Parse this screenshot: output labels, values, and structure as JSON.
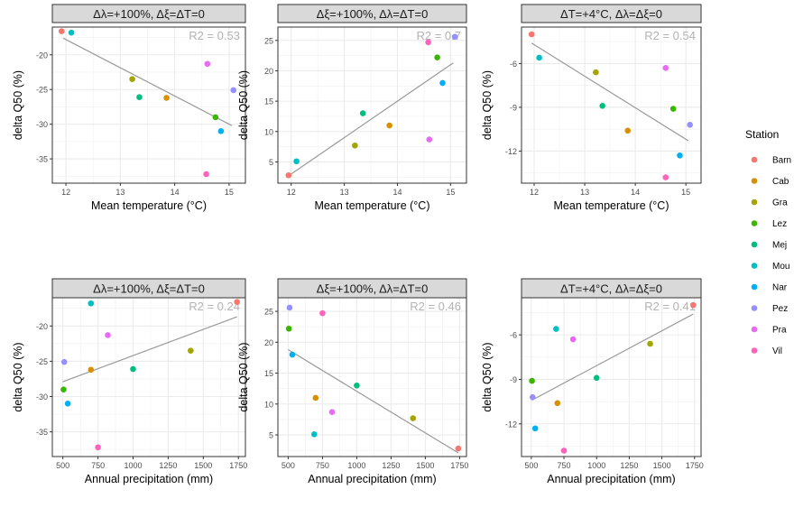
{
  "station_colors": {
    "Barn": "#F8766D",
    "Cab": "#D89000",
    "Gra": "#A3A500",
    "Lez": "#39B600",
    "Mej": "#00BF7D",
    "Mou": "#00BFC4",
    "Nar": "#00B0F6",
    "Pez": "#9590FF",
    "Pra": "#E76BF3",
    "Vil": "#FF62BC"
  },
  "legend": {
    "title": "Station",
    "items": [
      "Barn",
      "Cab",
      "Gra",
      "Lez",
      "Mej",
      "Mou",
      "Nar",
      "Pez",
      "Pra",
      "Vil"
    ]
  },
  "chart_data": [
    {
      "type": "scatter",
      "title": "Δλ=+100%, Δξ=ΔT=0",
      "xlabel": "Mean temperature (°C)",
      "ylabel": "delta Q50 (%)",
      "annotation": "R2 = 0.53",
      "xlim": [
        11.75,
        15.3
      ],
      "ylim": [
        -38.5,
        -16
      ],
      "xticks": [
        12,
        13,
        14,
        15
      ],
      "yticks": [
        -35,
        -30,
        -25,
        -20
      ],
      "trend": [
        [
          11.95,
          -17.6
        ],
        [
          15.05,
          -30.2
        ]
      ],
      "points": [
        {
          "station": "Barn",
          "x": 11.92,
          "y": -16.6
        },
        {
          "station": "Mou",
          "x": 12.1,
          "y": -16.8
        },
        {
          "station": "Gra",
          "x": 13.22,
          "y": -23.5
        },
        {
          "station": "Mej",
          "x": 13.35,
          "y": -26.1
        },
        {
          "station": "Cab",
          "x": 13.85,
          "y": -26.2
        },
        {
          "station": "Pra",
          "x": 14.6,
          "y": -21.3
        },
        {
          "station": "Vil",
          "x": 14.58,
          "y": -37.2
        },
        {
          "station": "Lez",
          "x": 14.75,
          "y": -29.0
        },
        {
          "station": "Nar",
          "x": 14.85,
          "y": -31.0
        },
        {
          "station": "Pez",
          "x": 15.08,
          "y": -25.1
        }
      ]
    },
    {
      "type": "scatter",
      "title": "Δξ=+100%, Δλ=ΔT=0",
      "xlabel": "Mean temperature (°C)",
      "ylabel": "delta Q50 (%)",
      "annotation": "R2 = 0.7",
      "xlim": [
        11.75,
        15.3
      ],
      "ylim": [
        1.5,
        27.2
      ],
      "xticks": [
        12,
        13,
        14,
        15
      ],
      "yticks": [
        5,
        10,
        15,
        20,
        25
      ],
      "trend": [
        [
          11.95,
          2.7
        ],
        [
          15.05,
          21.3
        ]
      ],
      "points": [
        {
          "station": "Barn",
          "x": 11.95,
          "y": 2.8
        },
        {
          "station": "Mou",
          "x": 12.1,
          "y": 5.1
        },
        {
          "station": "Gra",
          "x": 13.2,
          "y": 7.7
        },
        {
          "station": "Mej",
          "x": 13.35,
          "y": 13.0
        },
        {
          "station": "Cab",
          "x": 13.85,
          "y": 11.0
        },
        {
          "station": "Pra",
          "x": 14.6,
          "y": 8.7
        },
        {
          "station": "Vil",
          "x": 14.58,
          "y": 24.7
        },
        {
          "station": "Lez",
          "x": 14.75,
          "y": 22.2
        },
        {
          "station": "Nar",
          "x": 14.85,
          "y": 18.0
        },
        {
          "station": "Pez",
          "x": 15.08,
          "y": 25.6
        }
      ]
    },
    {
      "type": "scatter",
      "title": "ΔT=+4°C, Δλ=Δξ=0",
      "xlabel": "Mean temperature (°C)",
      "ylabel": "delta Q50 (%)",
      "annotation": "R2 = 0.54",
      "xlim": [
        11.75,
        15.3
      ],
      "ylim": [
        -14.2,
        -3.5
      ],
      "xticks": [
        12,
        13,
        14,
        15
      ],
      "yticks": [
        -12,
        -9,
        -6
      ],
      "trend": [
        [
          11.95,
          -4.6
        ],
        [
          15.05,
          -11.3
        ]
      ],
      "points": [
        {
          "station": "Barn",
          "x": 11.95,
          "y": -4.0
        },
        {
          "station": "Mou",
          "x": 12.1,
          "y": -5.6
        },
        {
          "station": "Gra",
          "x": 13.22,
          "y": -6.6
        },
        {
          "station": "Mej",
          "x": 13.35,
          "y": -8.9
        },
        {
          "station": "Cab",
          "x": 13.85,
          "y": -10.6
        },
        {
          "station": "Pra",
          "x": 14.6,
          "y": -6.3
        },
        {
          "station": "Vil",
          "x": 14.6,
          "y": -13.8
        },
        {
          "station": "Lez",
          "x": 14.75,
          "y": -9.1
        },
        {
          "station": "Nar",
          "x": 14.88,
          "y": -12.3
        },
        {
          "station": "Pez",
          "x": 15.08,
          "y": -10.2
        }
      ]
    },
    {
      "type": "scatter",
      "title": "Δλ=+100%, Δξ=ΔT=0",
      "xlabel": "Annual precipitation (mm)",
      "ylabel": "delta Q50 (%)",
      "annotation": "R2 = 0.24",
      "xlim": [
        425,
        1800
      ],
      "ylim": [
        -38.5,
        -16
      ],
      "xticks": [
        500,
        750,
        1000,
        1250,
        1500,
        1750
      ],
      "yticks": [
        -35,
        -30,
        -25,
        -20
      ],
      "trend": [
        [
          500,
          -27.9
        ],
        [
          1740,
          -18.7
        ]
      ],
      "points": [
        {
          "station": "Barn",
          "x": 1740,
          "y": -16.6
        },
        {
          "station": "Mou",
          "x": 700,
          "y": -16.8
        },
        {
          "station": "Gra",
          "x": 1410,
          "y": -23.5
        },
        {
          "station": "Mej",
          "x": 1000,
          "y": -26.1
        },
        {
          "station": "Cab",
          "x": 700,
          "y": -26.2
        },
        {
          "station": "Pra",
          "x": 820,
          "y": -21.3
        },
        {
          "station": "Vil",
          "x": 750,
          "y": -37.2
        },
        {
          "station": "Lez",
          "x": 505,
          "y": -29.0
        },
        {
          "station": "Nar",
          "x": 535,
          "y": -31.0
        },
        {
          "station": "Pez",
          "x": 510,
          "y": -25.1
        }
      ]
    },
    {
      "type": "scatter",
      "title": "Δξ=+100%, Δλ=ΔT=0",
      "xlabel": "Annual precipitation (mm)",
      "ylabel": "delta Q50 (%)",
      "annotation": "R2 = 0.46",
      "xlim": [
        425,
        1800
      ],
      "ylim": [
        1.5,
        27.2
      ],
      "xticks": [
        500,
        750,
        1000,
        1250,
        1500,
        1750
      ],
      "yticks": [
        5,
        10,
        15,
        20,
        25
      ],
      "trend": [
        [
          500,
          18.8
        ],
        [
          1740,
          2.1
        ]
      ],
      "points": [
        {
          "station": "Barn",
          "x": 1740,
          "y": 2.8
        },
        {
          "station": "Mou",
          "x": 690,
          "y": 5.1
        },
        {
          "station": "Gra",
          "x": 1410,
          "y": 7.7
        },
        {
          "station": "Mej",
          "x": 1000,
          "y": 13.0
        },
        {
          "station": "Cab",
          "x": 700,
          "y": 11.0
        },
        {
          "station": "Pra",
          "x": 820,
          "y": 8.7
        },
        {
          "station": "Vil",
          "x": 750,
          "y": 24.7
        },
        {
          "station": "Lez",
          "x": 505,
          "y": 22.2
        },
        {
          "station": "Nar",
          "x": 530,
          "y": 18.0
        },
        {
          "station": "Pez",
          "x": 510,
          "y": 25.6
        }
      ]
    },
    {
      "type": "scatter",
      "title": "ΔT=+4°C, Δλ=Δξ=0",
      "xlabel": "Annual precipitation (mm)",
      "ylabel": "delta Q50 (%)",
      "annotation": "R2 = 0.41",
      "xlim": [
        425,
        1800
      ],
      "ylim": [
        -14.2,
        -3.5
      ],
      "xticks": [
        500,
        750,
        1000,
        1250,
        1500,
        1750
      ],
      "yticks": [
        -12,
        -9,
        -6
      ],
      "trend": [
        [
          505,
          -10.4
        ],
        [
          1740,
          -4.6
        ]
      ],
      "points": [
        {
          "station": "Barn",
          "x": 1740,
          "y": -4.0
        },
        {
          "station": "Mou",
          "x": 690,
          "y": -5.6
        },
        {
          "station": "Gra",
          "x": 1410,
          "y": -6.6
        },
        {
          "station": "Mej",
          "x": 1000,
          "y": -8.9
        },
        {
          "station": "Cab",
          "x": 700,
          "y": -10.6
        },
        {
          "station": "Pra",
          "x": 820,
          "y": -6.3
        },
        {
          "station": "Vil",
          "x": 750,
          "y": -13.8
        },
        {
          "station": "Lez",
          "x": 505,
          "y": -9.1
        },
        {
          "station": "Nar",
          "x": 530,
          "y": -12.3
        },
        {
          "station": "Pez",
          "x": 510,
          "y": -10.2
        }
      ]
    }
  ]
}
